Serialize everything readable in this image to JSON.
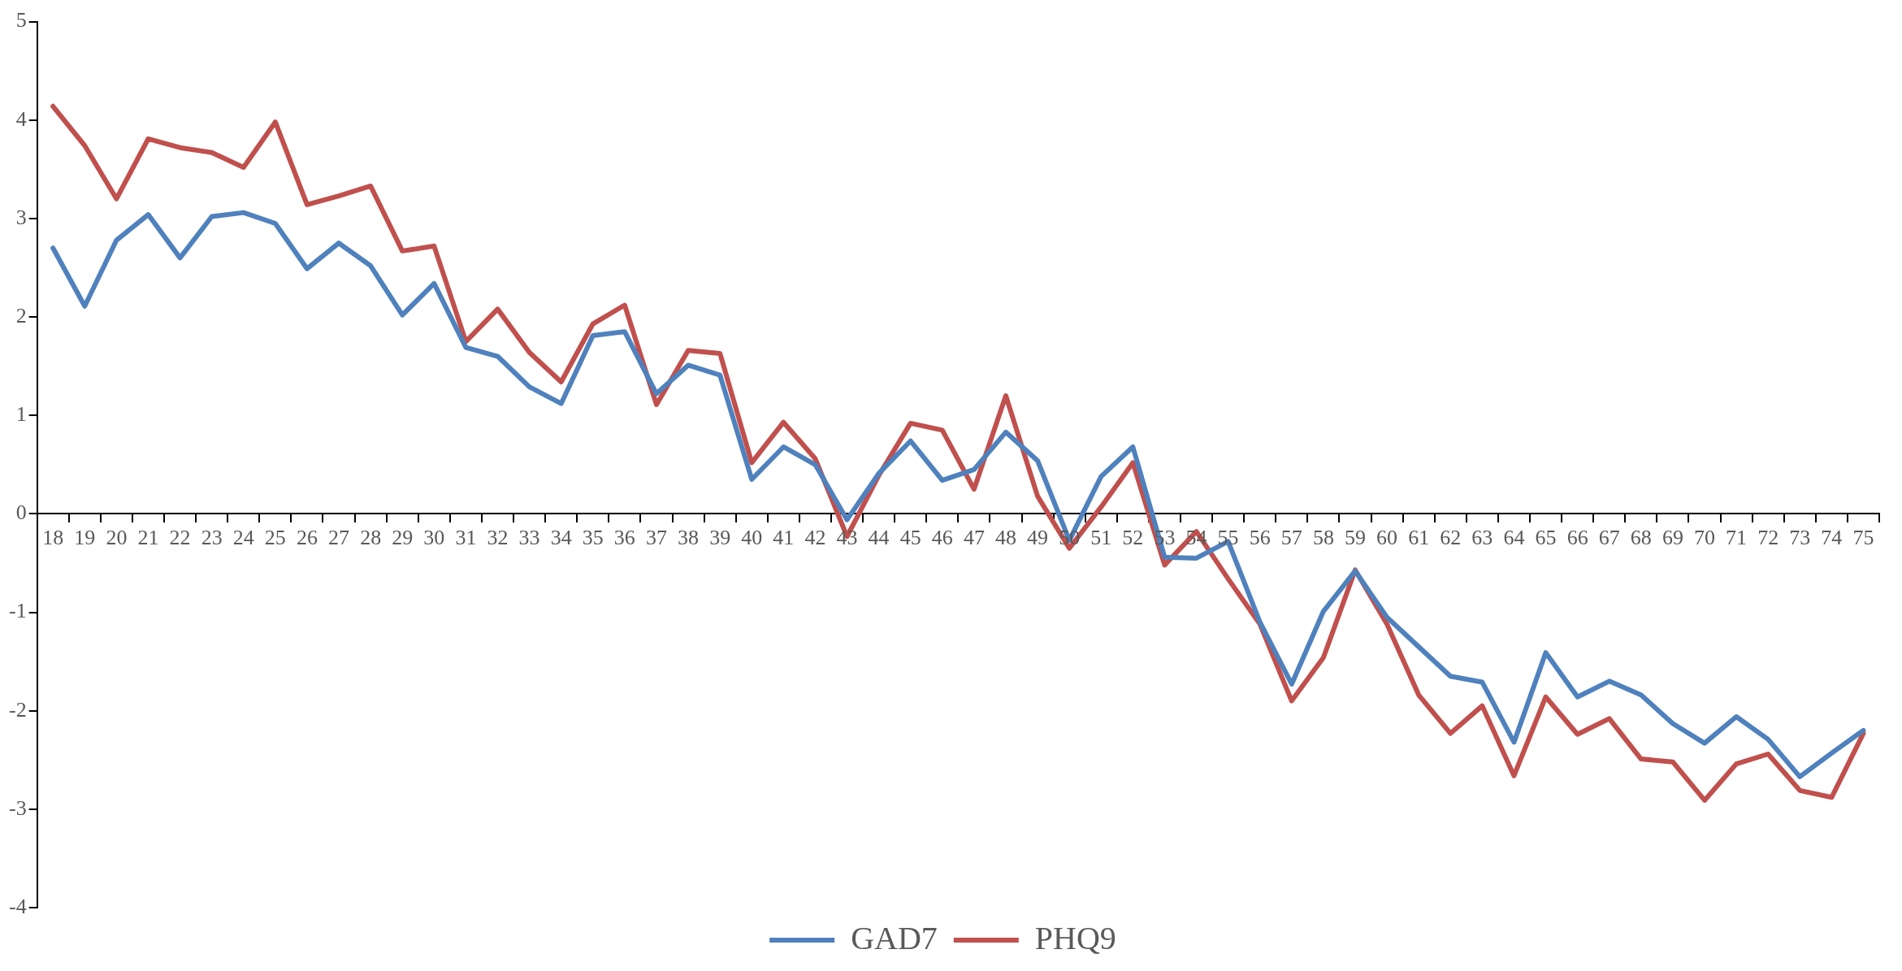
{
  "chart_data": {
    "type": "line",
    "categories": [
      "18",
      "19",
      "20",
      "21",
      "22",
      "23",
      "24",
      "25",
      "26",
      "27",
      "28",
      "29",
      "30",
      "31",
      "32",
      "33",
      "34",
      "35",
      "36",
      "37",
      "38",
      "39",
      "40",
      "41",
      "42",
      "43",
      "44",
      "45",
      "46",
      "47",
      "48",
      "49",
      "50",
      "51",
      "52",
      "53",
      "54",
      "55",
      "56",
      "57",
      "58",
      "59",
      "60",
      "61",
      "62",
      "63",
      "64",
      "65",
      "66",
      "67",
      "68",
      "69",
      "70",
      "71",
      "72",
      "73",
      "74",
      "75"
    ],
    "series": [
      {
        "name": "GAD7",
        "color": "#4f81bd",
        "values": [
          2.7,
          2.11,
          2.78,
          3.04,
          2.6,
          3.02,
          3.06,
          2.95,
          2.49,
          2.75,
          2.52,
          2.02,
          2.34,
          1.69,
          1.6,
          1.29,
          1.12,
          1.81,
          1.85,
          1.22,
          1.51,
          1.41,
          0.35,
          0.68,
          0.5,
          -0.06,
          0.41,
          0.74,
          0.34,
          0.45,
          0.83,
          0.54,
          -0.27,
          0.38,
          0.68,
          -0.44,
          -0.45,
          -0.28,
          -1.1,
          -1.73,
          -0.99,
          -0.58,
          -1.05,
          -1.35,
          -1.65,
          -1.71,
          -2.32,
          -1.41,
          -1.86,
          -1.7,
          -1.84,
          -2.13,
          -2.33,
          -2.06,
          -2.29,
          -2.67,
          -2.43,
          -2.2
        ]
      },
      {
        "name": "PHQ9",
        "color": "#c0504d",
        "values": [
          4.14,
          3.74,
          3.2,
          3.81,
          3.72,
          3.67,
          3.52,
          3.98,
          3.14,
          3.23,
          3.33,
          2.67,
          2.72,
          1.75,
          2.08,
          1.64,
          1.34,
          1.93,
          2.12,
          1.11,
          1.66,
          1.63,
          0.52,
          0.93,
          0.56,
          -0.23,
          0.39,
          0.92,
          0.85,
          0.25,
          1.2,
          0.18,
          -0.35,
          0.07,
          0.52,
          -0.52,
          -0.18,
          -0.66,
          -1.12,
          -1.9,
          -1.46,
          -0.57,
          -1.12,
          -1.84,
          -2.23,
          -1.95,
          -2.66,
          -1.86,
          -2.24,
          -2.08,
          -2.49,
          -2.52,
          -2.91,
          -2.54,
          -2.44,
          -2.81,
          -2.88,
          -2.23
        ]
      }
    ],
    "ylim": [
      -4,
      5
    ],
    "yticks": [
      -4,
      -3,
      -2,
      -1,
      0,
      1,
      2,
      3,
      4,
      5
    ],
    "grid": false,
    "legend": "bottom",
    "marker": "none",
    "line_style": "solid"
  }
}
